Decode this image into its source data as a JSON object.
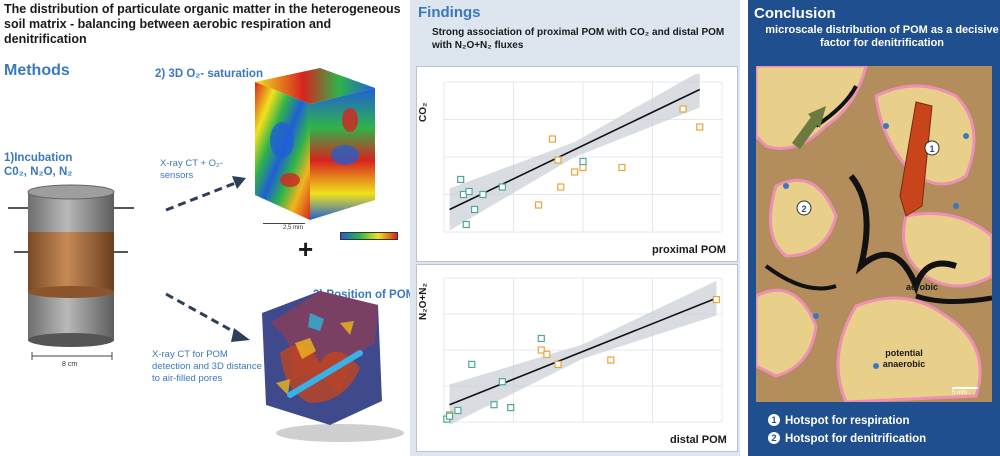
{
  "poster": {
    "title": "The distribution of particulate organic matter in the heterogeneous soil matrix - balancing between aerobic respiration and denitrification",
    "methods_label": "Methods",
    "incubation_label": "1)Incubation",
    "incubation_gases": "C0₂, N₂O, N₂",
    "core_dimension": "8 cm",
    "step2_label": "2) 3D O₂- saturation",
    "step2_method": "X-ray CT + O₂-sensors",
    "scale_bar_label": "2,5 mm",
    "step3_label": "3) Position of POM",
    "step3_method": "X-ray CT for POM detection and 3D distance to air-filled pores"
  },
  "findings": {
    "title": "Findings",
    "text": "Strong association of proximal POM with CO₂ and distal POM with N₂O+N₂ fluxes"
  },
  "chart_data": [
    {
      "type": "scatter",
      "title": "",
      "xlabel": "proximal POM",
      "ylabel": "CO₂",
      "series": [
        {
          "marker": "square",
          "color": "#e8a53e",
          "x": [
            0.34,
            0.39,
            0.41,
            0.42,
            0.47,
            0.5,
            0.64,
            0.86,
            0.92
          ],
          "y": [
            0.18,
            0.62,
            0.48,
            0.3,
            0.4,
            0.43,
            0.43,
            0.82,
            0.7
          ]
        },
        {
          "marker": "square",
          "color": "#4ea89a",
          "x": [
            0.06,
            0.07,
            0.08,
            0.09,
            0.11,
            0.14,
            0.21,
            0.5
          ],
          "y": [
            0.35,
            0.25,
            0.05,
            0.27,
            0.15,
            0.25,
            0.3,
            0.47
          ]
        }
      ],
      "trend_line": [
        [
          0.02,
          0.15
        ],
        [
          0.92,
          0.95
        ]
      ]
    },
    {
      "type": "scatter",
      "title": "",
      "xlabel": "distal POM",
      "ylabel": "N₂O+N₂",
      "series": [
        {
          "marker": "square",
          "color": "#e8a53e",
          "x": [
            0.02,
            0.35,
            0.37,
            0.41,
            0.6,
            0.98
          ],
          "y": [
            0.05,
            0.5,
            0.47,
            0.4,
            0.43,
            0.85
          ]
        },
        {
          "marker": "square",
          "color": "#4ea89a",
          "x": [
            0.01,
            0.02,
            0.05,
            0.1,
            0.18,
            0.21,
            0.24,
            0.35
          ],
          "y": [
            0.02,
            0.04,
            0.08,
            0.4,
            0.12,
            0.28,
            0.1,
            0.58
          ]
        }
      ],
      "trend_line": [
        [
          0.02,
          0.12
        ],
        [
          0.98,
          0.86
        ]
      ]
    }
  ],
  "conclusion": {
    "title": "Conclusion",
    "text": "microscale distribution of POM as a decisive factor for denitrification",
    "map_label_aerobic": "aerobic",
    "map_label_anaerobic": "potential anaerobic",
    "map_scale": "5 mm",
    "legend": [
      {
        "number": "1",
        "label": "Hotspot for respiration"
      },
      {
        "number": "2",
        "label": "Hotspot for denitrification"
      }
    ]
  },
  "colors": {
    "accent_blue": "#3b78c0",
    "findings_bg": "#dde6ef",
    "conclusion_bg": "#1f4f8e",
    "proximal_marker": "#e8a53e",
    "distal_marker": "#4ea89a",
    "pom_red": "#c8441a"
  }
}
